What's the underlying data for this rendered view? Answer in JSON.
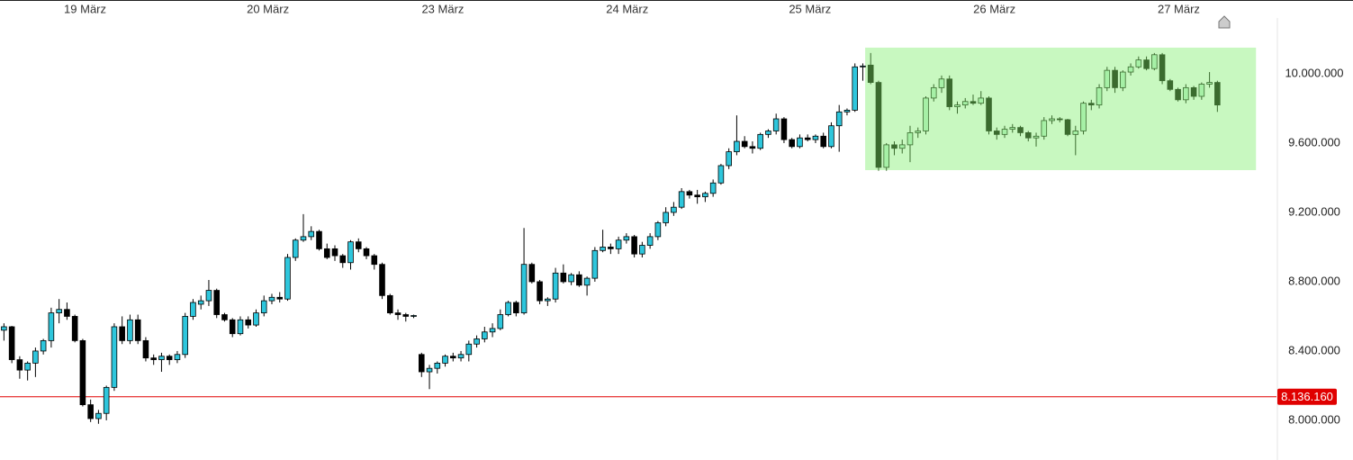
{
  "chart_data": {
    "type": "candlestick",
    "xlim": [
      -0.5,
      161.5
    ],
    "xticks": [
      {
        "value": 10.3,
        "label": "19 März"
      },
      {
        "value": 33.5,
        "label": "20 März"
      },
      {
        "value": 55.7,
        "label": "23 März"
      },
      {
        "value": 79.1,
        "label": "24 März"
      },
      {
        "value": 102.3,
        "label": "25 März"
      },
      {
        "value": 125.7,
        "label": "26 März"
      },
      {
        "value": 149.1,
        "label": "27 März"
      }
    ],
    "ylim": [
      7771000,
      10322000
    ],
    "yticks": [
      {
        "value": 8000000,
        "label": "8.000.000"
      },
      {
        "value": 8400000,
        "label": "8.400.000"
      },
      {
        "value": 8800000,
        "label": "8.800.000"
      },
      {
        "value": 9200000,
        "label": "9.200.000"
      },
      {
        "value": 9600000,
        "label": "9.600.000"
      },
      {
        "value": 10000000,
        "label": "10.000.000"
      }
    ],
    "up_color": "#2ec6dc",
    "down_color": "#000000",
    "highlight_up_color": "#a6f0a6",
    "highlight_down_color": "#3b6b2f",
    "current_price": {
      "value": 8136160,
      "label": "8.136.160",
      "color": "#e00000"
    },
    "highlight": {
      "xlim": [
        109.3,
        158.9
      ],
      "ylim": [
        9444000,
        10151000
      ],
      "color": "#c8f8c0"
    },
    "ohlc": [
      [
        8520000,
        8560000,
        8460000,
        8540000
      ],
      [
        8540000,
        8545000,
        8330000,
        8350000
      ],
      [
        8350000,
        8370000,
        8240000,
        8290000
      ],
      [
        8290000,
        8340000,
        8230000,
        8330000
      ],
      [
        8330000,
        8420000,
        8250000,
        8400000
      ],
      [
        8400000,
        8470000,
        8380000,
        8460000
      ],
      [
        8460000,
        8650000,
        8420000,
        8620000
      ],
      [
        8620000,
        8700000,
        8560000,
        8640000
      ],
      [
        8640000,
        8680000,
        8580000,
        8600000
      ],
      [
        8600000,
        8610000,
        8450000,
        8460000
      ],
      [
        8460000,
        8470000,
        8080000,
        8090000
      ],
      [
        8090000,
        8120000,
        7990000,
        8010000
      ],
      [
        8010000,
        8060000,
        7980000,
        8040000
      ],
      [
        8040000,
        8200000,
        8000000,
        8190000
      ],
      [
        8190000,
        8560000,
        8170000,
        8540000
      ],
      [
        8540000,
        8600000,
        8440000,
        8460000
      ],
      [
        8460000,
        8610000,
        8440000,
        8580000
      ],
      [
        8580000,
        8610000,
        8440000,
        8460000
      ],
      [
        8460000,
        8480000,
        8340000,
        8360000
      ],
      [
        8360000,
        8380000,
        8320000,
        8350000
      ],
      [
        8350000,
        8390000,
        8280000,
        8370000
      ],
      [
        8370000,
        8380000,
        8320000,
        8350000
      ],
      [
        8350000,
        8400000,
        8330000,
        8380000
      ],
      [
        8380000,
        8620000,
        8360000,
        8600000
      ],
      [
        8600000,
        8700000,
        8580000,
        8680000
      ],
      [
        8670000,
        8720000,
        8640000,
        8690000
      ],
      [
        8690000,
        8810000,
        8660000,
        8750000
      ],
      [
        8750000,
        8760000,
        8590000,
        8610000
      ],
      [
        8610000,
        8620000,
        8570000,
        8580000
      ],
      [
        8580000,
        8590000,
        8480000,
        8500000
      ],
      [
        8500000,
        8600000,
        8490000,
        8580000
      ],
      [
        8580000,
        8600000,
        8530000,
        8550000
      ],
      [
        8550000,
        8640000,
        8540000,
        8620000
      ],
      [
        8620000,
        8720000,
        8600000,
        8690000
      ],
      [
        8690000,
        8730000,
        8670000,
        8710000
      ],
      [
        8710000,
        8740000,
        8680000,
        8700000
      ],
      [
        8700000,
        8960000,
        8690000,
        8940000
      ],
      [
        8940000,
        9050000,
        8920000,
        9040000
      ],
      [
        9040000,
        9190000,
        9030000,
        9060000
      ],
      [
        9060000,
        9120000,
        9040000,
        9090000
      ],
      [
        9090000,
        9100000,
        8980000,
        8990000
      ],
      [
        8990000,
        9020000,
        8930000,
        8940000
      ],
      [
        8990000,
        9010000,
        8920000,
        8950000
      ],
      [
        8950000,
        8960000,
        8880000,
        8910000
      ],
      [
        8910000,
        9040000,
        8870000,
        9030000
      ],
      [
        9030000,
        9050000,
        8970000,
        8990000
      ],
      [
        8990000,
        9000000,
        8930000,
        8950000
      ],
      [
        8950000,
        8960000,
        8870000,
        8900000
      ],
      [
        8900000,
        8910000,
        8700000,
        8720000
      ],
      [
        8720000,
        8730000,
        8610000,
        8620000
      ],
      [
        8620000,
        8640000,
        8580000,
        8610000
      ],
      [
        8610000,
        8620000,
        8570000,
        8600000
      ],
      [
        8600000,
        8610000,
        8590000,
        8605000
      ],
      [
        8380000,
        8390000,
        8250000,
        8280000
      ],
      [
        8280000,
        8320000,
        8180000,
        8300000
      ],
      [
        8300000,
        8340000,
        8270000,
        8330000
      ],
      [
        8330000,
        8380000,
        8310000,
        8370000
      ],
      [
        8370000,
        8390000,
        8340000,
        8360000
      ],
      [
        8360000,
        8400000,
        8340000,
        8380000
      ],
      [
        8380000,
        8460000,
        8340000,
        8440000
      ],
      [
        8440000,
        8490000,
        8420000,
        8470000
      ],
      [
        8470000,
        8540000,
        8450000,
        8510000
      ],
      [
        8510000,
        8560000,
        8480000,
        8530000
      ],
      [
        8530000,
        8640000,
        8520000,
        8610000
      ],
      [
        8610000,
        8690000,
        8600000,
        8680000
      ],
      [
        8680000,
        8690000,
        8600000,
        8620000
      ],
      [
        8620000,
        9110000,
        8610000,
        8900000
      ],
      [
        8900000,
        8910000,
        8790000,
        8800000
      ],
      [
        8800000,
        8810000,
        8670000,
        8690000
      ],
      [
        8690000,
        8710000,
        8660000,
        8700000
      ],
      [
        8700000,
        8880000,
        8680000,
        8850000
      ],
      [
        8850000,
        8900000,
        8790000,
        8800000
      ],
      [
        8800000,
        8850000,
        8780000,
        8840000
      ],
      [
        8840000,
        8860000,
        8770000,
        8780000
      ],
      [
        8780000,
        8830000,
        8720000,
        8820000
      ],
      [
        8820000,
        9000000,
        8800000,
        8980000
      ],
      [
        8980000,
        9100000,
        8970000,
        9000000
      ],
      [
        9000000,
        9020000,
        8960000,
        8990000
      ],
      [
        8990000,
        9060000,
        8960000,
        9040000
      ],
      [
        9040000,
        9080000,
        9020000,
        9060000
      ],
      [
        9060000,
        9070000,
        8940000,
        8960000
      ],
      [
        8960000,
        9030000,
        8940000,
        9010000
      ],
      [
        9010000,
        9080000,
        8990000,
        9060000
      ],
      [
        9060000,
        9150000,
        9040000,
        9140000
      ],
      [
        9140000,
        9230000,
        9120000,
        9200000
      ],
      [
        9200000,
        9260000,
        9180000,
        9230000
      ],
      [
        9230000,
        9340000,
        9220000,
        9320000
      ],
      [
        9320000,
        9330000,
        9280000,
        9300000
      ],
      [
        9300000,
        9330000,
        9250000,
        9290000
      ],
      [
        9290000,
        9320000,
        9260000,
        9310000
      ],
      [
        9310000,
        9390000,
        9290000,
        9370000
      ],
      [
        9370000,
        9480000,
        9360000,
        9470000
      ],
      [
        9470000,
        9570000,
        9450000,
        9550000
      ],
      [
        9550000,
        9760000,
        9530000,
        9610000
      ],
      [
        9610000,
        9640000,
        9570000,
        9580000
      ],
      [
        9580000,
        9610000,
        9540000,
        9570000
      ],
      [
        9570000,
        9660000,
        9560000,
        9650000
      ],
      [
        9650000,
        9680000,
        9630000,
        9670000
      ],
      [
        9670000,
        9770000,
        9650000,
        9740000
      ],
      [
        9740000,
        9750000,
        9600000,
        9620000
      ],
      [
        9620000,
        9630000,
        9570000,
        9580000
      ],
      [
        9580000,
        9650000,
        9570000,
        9630000
      ],
      [
        9630000,
        9650000,
        9610000,
        9620000
      ],
      [
        9620000,
        9650000,
        9600000,
        9640000
      ],
      [
        9640000,
        9660000,
        9570000,
        9580000
      ],
      [
        9580000,
        9720000,
        9570000,
        9700000
      ],
      [
        9700000,
        9820000,
        9550000,
        9780000
      ],
      [
        9780000,
        9800000,
        9760000,
        9790000
      ],
      [
        9790000,
        10060000,
        9780000,
        10040000
      ],
      [
        10040000,
        10060000,
        9960000,
        10045000
      ],
      [
        10050000,
        10120000,
        9940000,
        9950000
      ],
      [
        9950000,
        9960000,
        9440000,
        9460000
      ],
      [
        9460000,
        9600000,
        9440000,
        9590000
      ],
      [
        9590000,
        9610000,
        9530000,
        9570000
      ],
      [
        9570000,
        9620000,
        9540000,
        9590000
      ],
      [
        9590000,
        9700000,
        9490000,
        9660000
      ],
      [
        9660000,
        9690000,
        9630000,
        9670000
      ],
      [
        9670000,
        9870000,
        9650000,
        9860000
      ],
      [
        9860000,
        9940000,
        9840000,
        9920000
      ],
      [
        9920000,
        9990000,
        9890000,
        9970000
      ],
      [
        9970000,
        9990000,
        9790000,
        9810000
      ],
      [
        9810000,
        9840000,
        9770000,
        9820000
      ],
      [
        9820000,
        9860000,
        9800000,
        9840000
      ],
      [
        9840000,
        9880000,
        9820000,
        9830000
      ],
      [
        9830000,
        9900000,
        9820000,
        9860000
      ],
      [
        9860000,
        9870000,
        9650000,
        9670000
      ],
      [
        9670000,
        9690000,
        9620000,
        9650000
      ],
      [
        9650000,
        9700000,
        9630000,
        9680000
      ],
      [
        9680000,
        9710000,
        9660000,
        9690000
      ],
      [
        9690000,
        9700000,
        9640000,
        9660000
      ],
      [
        9660000,
        9670000,
        9610000,
        9630000
      ],
      [
        9630000,
        9660000,
        9580000,
        9640000
      ],
      [
        9640000,
        9750000,
        9620000,
        9730000
      ],
      [
        9730000,
        9760000,
        9710000,
        9740000
      ],
      [
        9740000,
        9750000,
        9720000,
        9735000
      ],
      [
        9735000,
        9740000,
        9640000,
        9650000
      ],
      [
        9650000,
        9700000,
        9530000,
        9670000
      ],
      [
        9670000,
        9840000,
        9650000,
        9830000
      ],
      [
        9830000,
        9850000,
        9790000,
        9820000
      ],
      [
        9820000,
        9940000,
        9800000,
        9920000
      ],
      [
        9920000,
        10040000,
        9900000,
        10020000
      ],
      [
        10020000,
        10040000,
        9890000,
        9920000
      ],
      [
        9920000,
        10020000,
        9900000,
        10010000
      ],
      [
        10010000,
        10060000,
        9990000,
        10040000
      ],
      [
        10040000,
        10100000,
        10030000,
        10080000
      ],
      [
        10080000,
        10100000,
        10020000,
        10030000
      ],
      [
        10030000,
        10120000,
        10020000,
        10110000
      ],
      [
        10110000,
        10120000,
        9940000,
        9960000
      ],
      [
        9960000,
        9970000,
        9900000,
        9910000
      ],
      [
        9910000,
        9920000,
        9840000,
        9850000
      ],
      [
        9850000,
        9940000,
        9830000,
        9920000
      ],
      [
        9920000,
        9930000,
        9850000,
        9870000
      ],
      [
        9870000,
        9950000,
        9850000,
        9940000
      ],
      [
        9940000,
        10010000,
        9920000,
        9950000
      ],
      [
        9950000,
        9960000,
        9780000,
        9820000
      ]
    ]
  }
}
